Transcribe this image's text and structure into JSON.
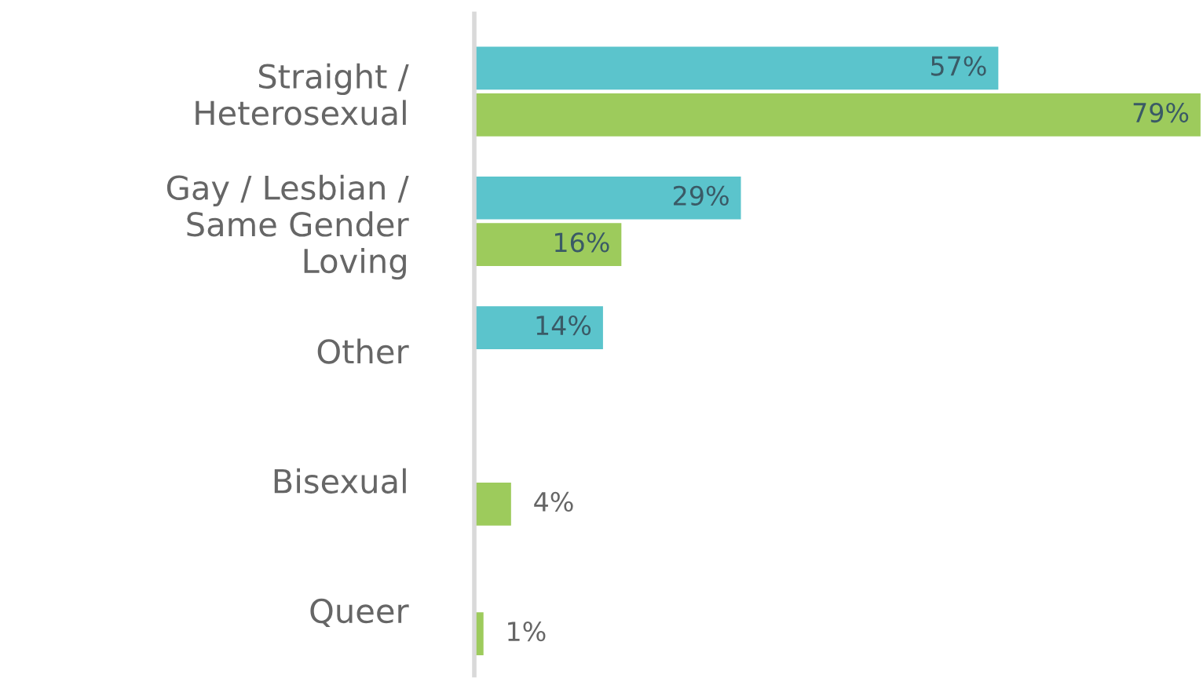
{
  "chart_data": {
    "type": "bar",
    "orientation": "horizontal",
    "data_labels": true,
    "grid": false,
    "legend": false,
    "categories": [
      "Straight /\nHeterosexual",
      "Gay / Lesbian /\nSame Gender\nLoving",
      "Other",
      "Bisexual",
      "Queer"
    ],
    "series": [
      {
        "color": "#5bc4cc",
        "values": [
          57,
          29,
          14,
          null,
          null
        ],
        "value_labels": [
          "57%",
          "29%",
          "14%",
          null,
          null
        ]
      },
      {
        "color": "#9dcb5c",
        "values": [
          79,
          16,
          null,
          4,
          1
        ],
        "value_labels": [
          "79%",
          "16%",
          null,
          "4%",
          "1%"
        ]
      }
    ]
  }
}
